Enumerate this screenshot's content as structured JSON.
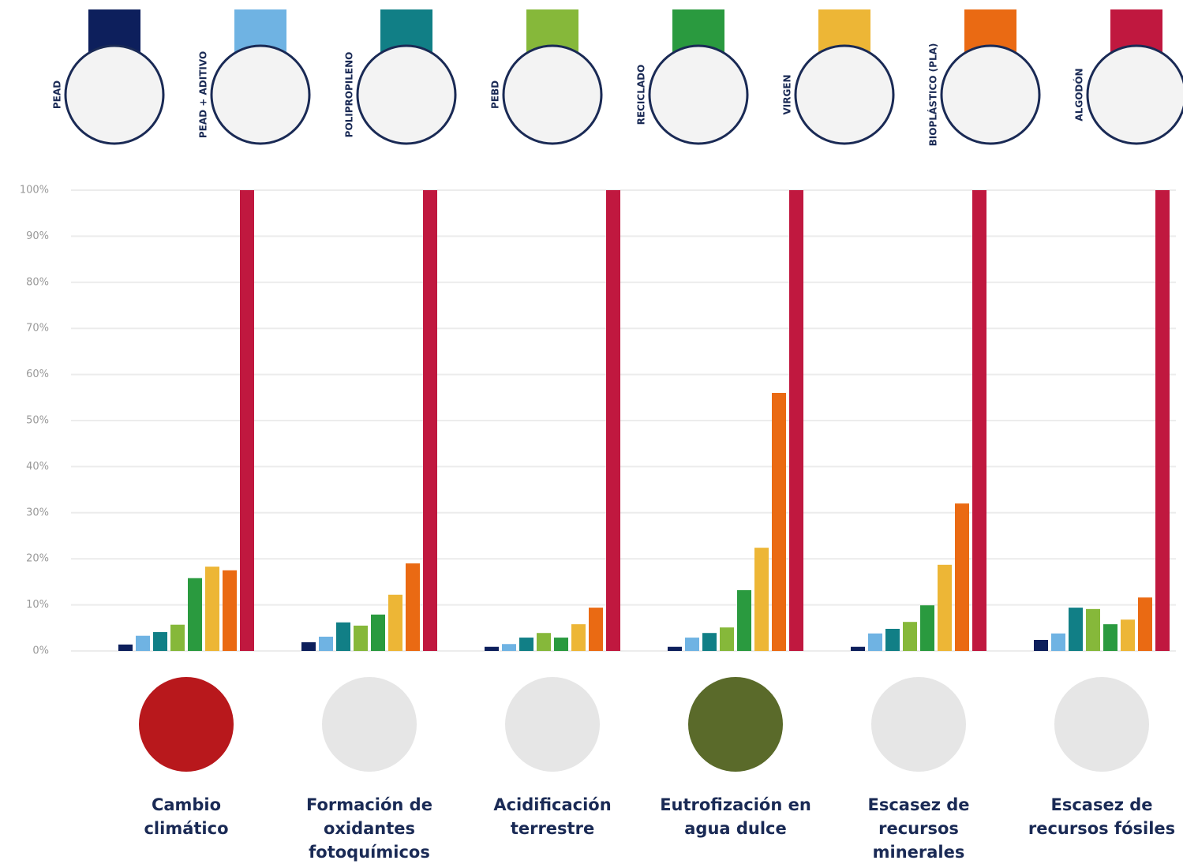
{
  "chart_data": {
    "type": "bar",
    "categories": [
      "Cambio climático",
      "Formación de oxidantes fotoquímicos",
      "Acidificación terrestre",
      "Eutrofización en agua dulce",
      "Escasez de recursos minerales",
      "Escasez de recursos fósiles"
    ],
    "series": [
      {
        "name": "PEAD",
        "color": "#0d1f5c",
        "values": [
          1.4,
          1.9,
          0.9,
          0.9,
          0.9,
          2.4
        ]
      },
      {
        "name": "PEAD + ADITIVO",
        "color": "#6fb3e3",
        "values": [
          3.3,
          3.1,
          1.5,
          2.9,
          3.8,
          3.8
        ]
      },
      {
        "name": "POLIPROPILENO",
        "color": "#117f86",
        "values": [
          4.1,
          6.2,
          2.9,
          3.9,
          4.8,
          9.4
        ]
      },
      {
        "name": "PEBD",
        "color": "#86b83a",
        "values": [
          5.7,
          5.5,
          3.9,
          5.1,
          6.3,
          9.1
        ]
      },
      {
        "name": "RECICLADO",
        "color": "#2a9a3f",
        "values": [
          15.8,
          7.9,
          2.9,
          13.2,
          9.9,
          5.8
        ]
      },
      {
        "name": "VIRGEN",
        "color": "#edb636",
        "values": [
          18.3,
          12.2,
          5.8,
          22.4,
          18.7,
          6.8
        ]
      },
      {
        "name": "BIOPLÁSTICO (PLA)",
        "color": "#ea6a13",
        "values": [
          17.5,
          19,
          9.4,
          56,
          32,
          11.6
        ]
      },
      {
        "name": "ALGODÓN",
        "color": "#c0183f",
        "values": [
          100,
          100,
          100,
          100,
          100,
          100
        ]
      }
    ],
    "ylim": [
      0,
      100
    ],
    "yticks": [
      {
        "value": 0,
        "label": "0%"
      },
      {
        "value": 10,
        "label": "10%"
      },
      {
        "value": 20,
        "label": "20%"
      },
      {
        "value": 30,
        "label": "30%"
      },
      {
        "value": 40,
        "label": "40%"
      },
      {
        "value": 50,
        "label": "50%"
      },
      {
        "value": 60,
        "label": "60%"
      },
      {
        "value": 70,
        "label": "70%"
      },
      {
        "value": 80,
        "label": "80%"
      },
      {
        "value": 90,
        "label": "90%"
      },
      {
        "value": 100,
        "label": "100%"
      }
    ],
    "grid": true
  }
}
